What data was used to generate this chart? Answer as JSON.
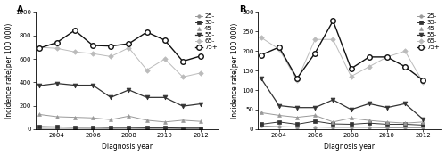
{
  "years": [
    2003,
    2004,
    2005,
    2006,
    2007,
    2008,
    2009,
    2010,
    2011,
    2012
  ],
  "panel_A": {
    "title": "A",
    "ylabel": "Incidence rate(per 100 000)",
    "xlabel": "Diagnosis year",
    "ylim": [
      0,
      1000
    ],
    "yticks": [
      0,
      200,
      400,
      600,
      800,
      1000
    ],
    "series": {
      "25-": [
        5,
        5,
        5,
        4,
        3,
        4,
        3,
        3,
        2,
        2
      ],
      "35-": [
        20,
        18,
        15,
        15,
        12,
        12,
        10,
        10,
        8,
        8
      ],
      "45-": [
        125,
        105,
        100,
        95,
        80,
        110,
        75,
        60,
        75,
        65
      ],
      "55-": [
        370,
        390,
        375,
        375,
        270,
        335,
        270,
        270,
        195,
        215
      ],
      "65-": [
        700,
        690,
        660,
        645,
        620,
        695,
        505,
        600,
        445,
        480
      ],
      "75+": [
        690,
        740,
        845,
        715,
        710,
        730,
        830,
        760,
        580,
        625
      ]
    }
  },
  "panel_B": {
    "title": "B",
    "ylabel": "Incidence rate(per 100 000)",
    "xlabel": "Diagnosis year",
    "ylim": [
      0,
      300
    ],
    "yticks": [
      0,
      50,
      100,
      150,
      200,
      250,
      300
    ],
    "series": {
      "25-": [
        8,
        6,
        5,
        5,
        4,
        4,
        4,
        3,
        3,
        3
      ],
      "35-": [
        12,
        18,
        12,
        20,
        13,
        12,
        15,
        12,
        12,
        10
      ],
      "45-": [
        42,
        35,
        30,
        35,
        18,
        28,
        22,
        18,
        15,
        18
      ],
      "55-": [
        130,
        60,
        55,
        55,
        75,
        50,
        65,
        55,
        65,
        25
      ],
      "65-": [
        235,
        205,
        125,
        230,
        230,
        135,
        160,
        185,
        200,
        120
      ],
      "75+": [
        190,
        210,
        130,
        195,
        278,
        155,
        185,
        185,
        160,
        125
      ]
    }
  },
  "line_styles": {
    "25-": {
      "color": "#999999",
      "marker": "o",
      "markersize": 2.5,
      "linewidth": 0.7,
      "markerfacecolor": "#999999",
      "markeredgecolor": "#999999",
      "markeredgewidth": 0.5
    },
    "35-": {
      "color": "#333333",
      "marker": "s",
      "markersize": 2.5,
      "linewidth": 0.7,
      "markerfacecolor": "#333333",
      "markeredgecolor": "#333333",
      "markeredgewidth": 0.5
    },
    "45-": {
      "color": "#999999",
      "marker": "^",
      "markersize": 2.8,
      "linewidth": 0.7,
      "markerfacecolor": "#999999",
      "markeredgecolor": "#999999",
      "markeredgewidth": 0.5
    },
    "55-": {
      "color": "#333333",
      "marker": "v",
      "markersize": 3.5,
      "linewidth": 0.9,
      "markerfacecolor": "#333333",
      "markeredgecolor": "#333333",
      "markeredgewidth": 0.5
    },
    "65-": {
      "color": "#bbbbbb",
      "marker": "D",
      "markersize": 2.8,
      "linewidth": 0.7,
      "markerfacecolor": "#bbbbbb",
      "markeredgecolor": "#bbbbbb",
      "markeredgewidth": 0.5
    },
    "75+": {
      "color": "#111111",
      "marker": "o",
      "markersize": 4.0,
      "linewidth": 1.0,
      "markerfacecolor": "white",
      "markeredgecolor": "#111111",
      "markeredgewidth": 1.0
    }
  },
  "legend_fontsize": 5.0,
  "axis_label_fontsize": 5.5,
  "tick_fontsize": 5.0,
  "title_fontsize": 7.0
}
